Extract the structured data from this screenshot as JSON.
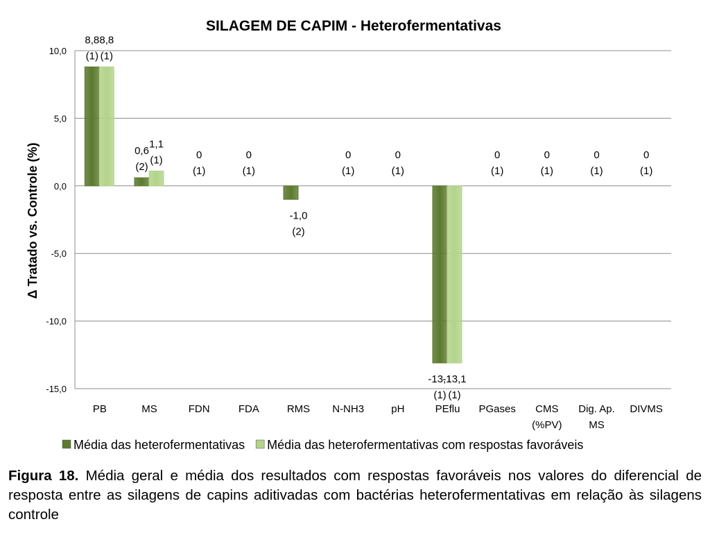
{
  "chart_data": {
    "type": "bar",
    "title": "SILAGEM DE CAPIM - Heterofermentativas",
    "ylabel": "Δ Tratado vs. Controle (%)",
    "xlabel": "",
    "ylim": [
      -15,
      10
    ],
    "yticks": [
      "10,0",
      "5,0",
      "0,0",
      "-5,0",
      "-10,0",
      "-15,0"
    ],
    "yticks_values": [
      10,
      5,
      0,
      -5,
      -10,
      -15
    ],
    "grid": true,
    "legend_position": "bottom",
    "categories": [
      [
        "PB"
      ],
      [
        "MS"
      ],
      [
        "FDN"
      ],
      [
        "FDA"
      ],
      [
        "RMS"
      ],
      [
        "N-NH3"
      ],
      [
        "pH"
      ],
      [
        "PEflu"
      ],
      [
        "PGases"
      ],
      [
        "CMS",
        "(%PV)"
      ],
      [
        "Dig. Ap.",
        "MS"
      ],
      [
        "DIVMS"
      ]
    ],
    "series": [
      {
        "name": "Média das heterofermentativas",
        "color": "#5b7a2e",
        "values": [
          8.8,
          0.6,
          0,
          0,
          -1.0,
          0,
          0,
          -13.1,
          0,
          0,
          0,
          0
        ],
        "labels": [
          [
            "8,8",
            "(1)"
          ],
          [
            "0,6",
            "(2)"
          ],
          [
            "0",
            "(1)"
          ],
          [
            "0",
            "(1)"
          ],
          [
            "-1,0",
            "(2)"
          ],
          [
            "0",
            "(1)"
          ],
          [
            "0",
            "(1)"
          ],
          [
            "-13,1",
            "(1)"
          ],
          [
            "0",
            "(1)"
          ],
          [
            "0",
            "(1)"
          ],
          [
            "0",
            "(1)"
          ],
          [
            "0",
            "(1)"
          ]
        ]
      },
      {
        "name": "Média das heterofermentativas com respostas favoráveis",
        "color": "#b3d48a",
        "values": [
          8.8,
          1.1,
          null,
          null,
          null,
          null,
          null,
          -13.1,
          null,
          null,
          null,
          null
        ],
        "labels": [
          [
            "8,8",
            "(1)"
          ],
          [
            "1,1",
            "(1)"
          ],
          null,
          null,
          null,
          null,
          null,
          [
            "-13,1",
            "(1)"
          ],
          null,
          null,
          null,
          null
        ]
      }
    ]
  },
  "caption": {
    "label": "Figura 18.",
    "text": " Média geral e média dos resultados com respostas favoráveis nos valores do diferencial de resposta entre as silagens de capins aditivadas com bactérias heterofermentativas em relação às silagens controle"
  }
}
